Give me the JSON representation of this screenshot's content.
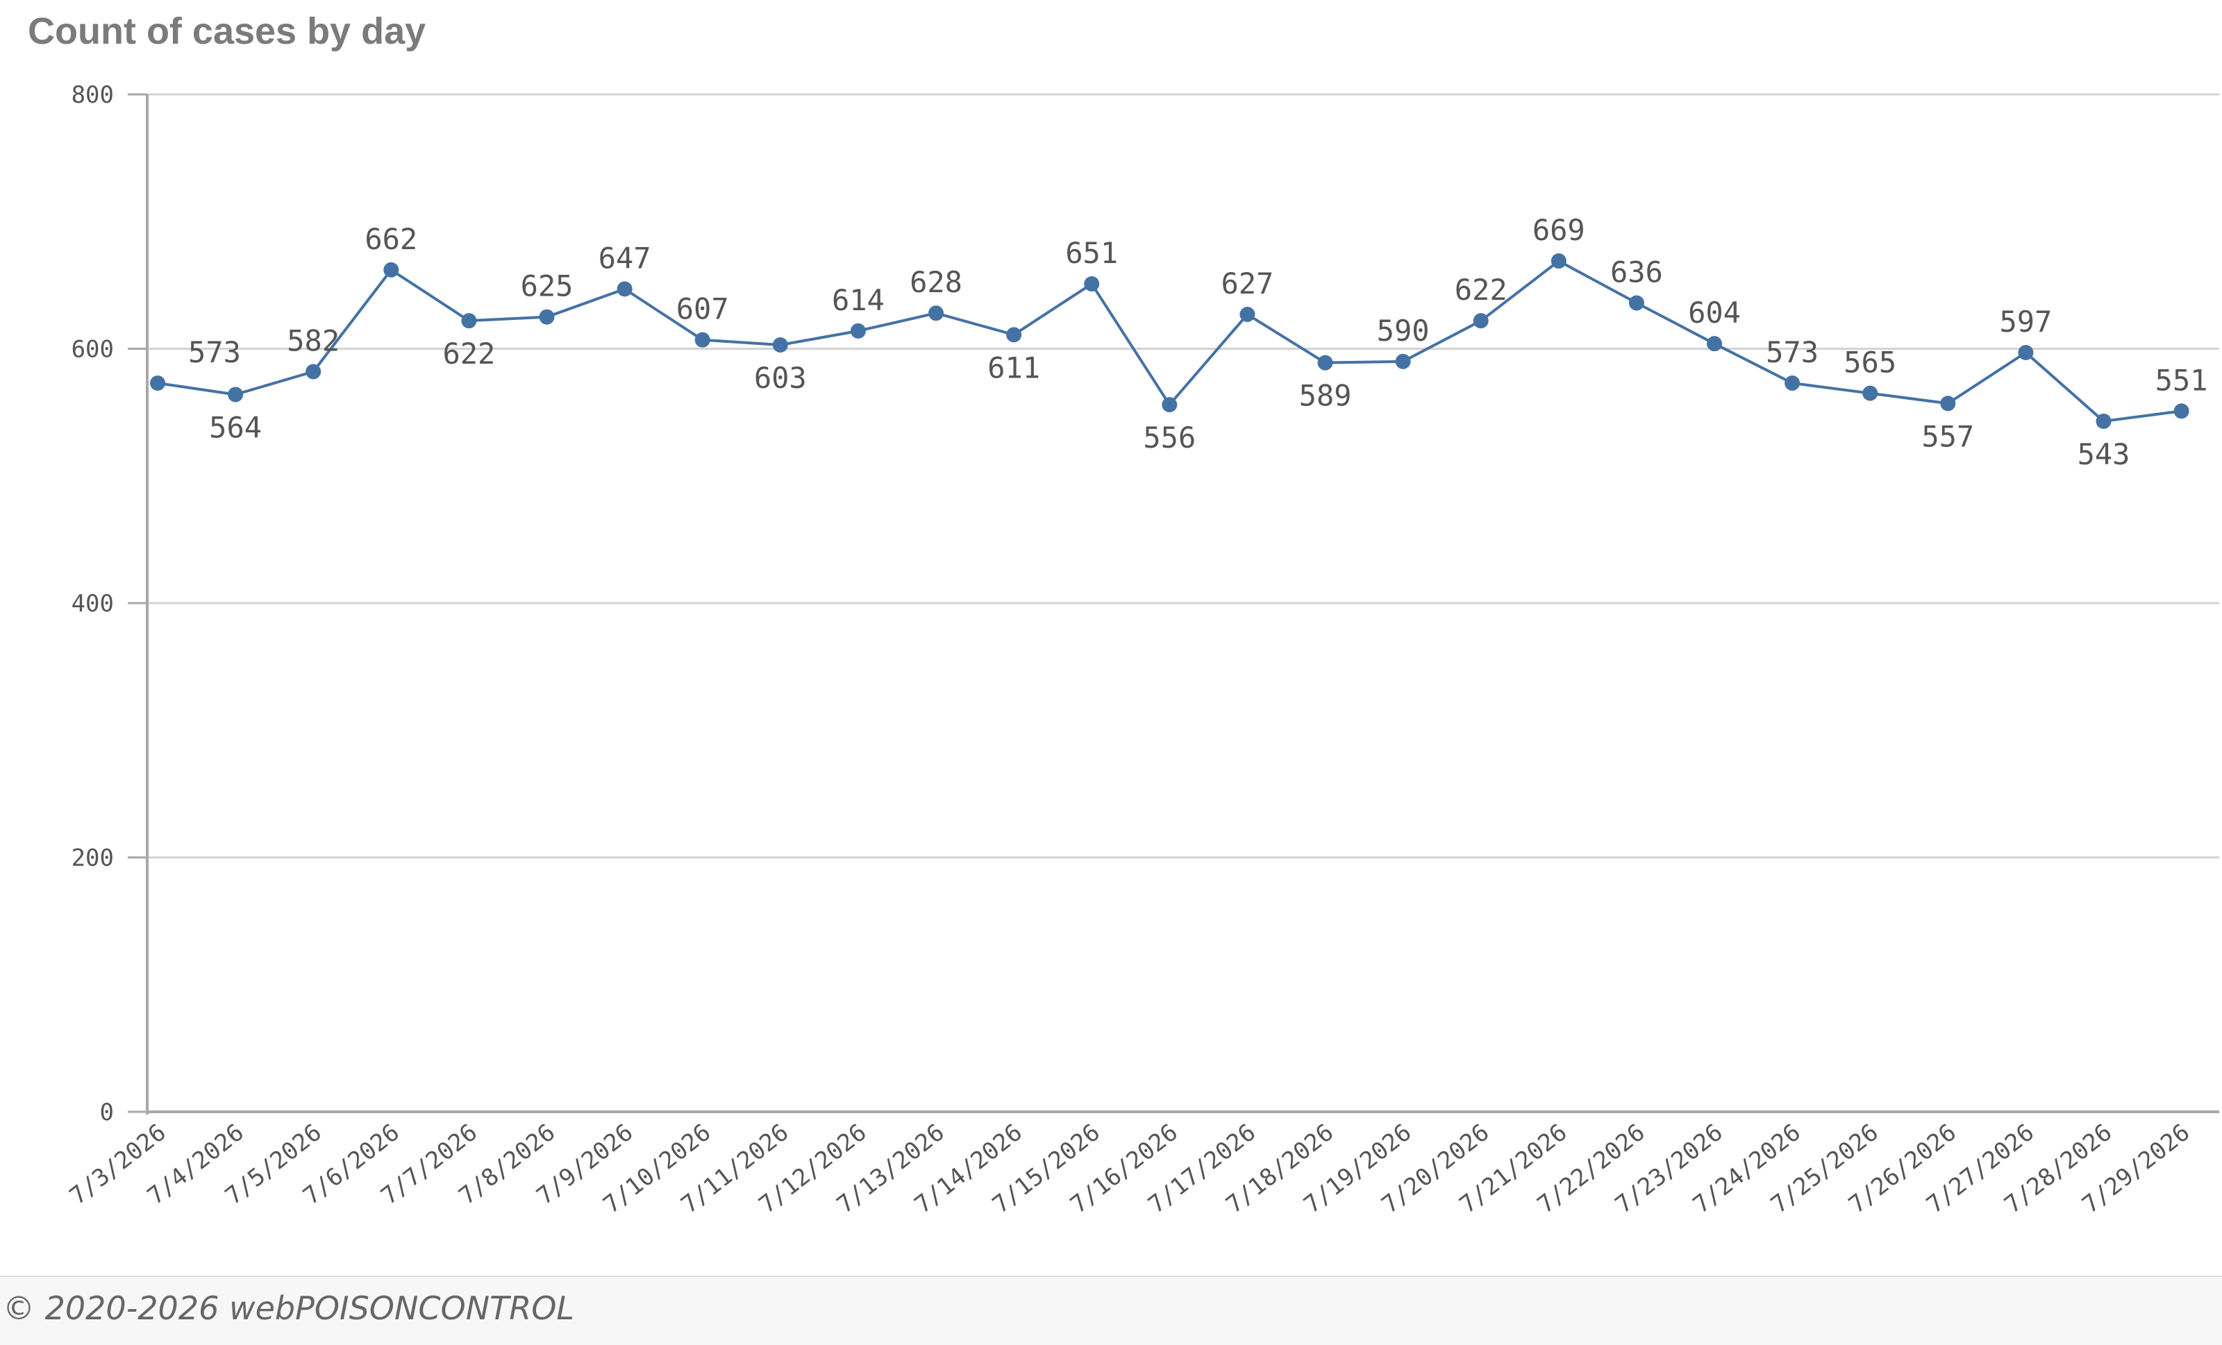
{
  "title": "Count of cases by day",
  "footer": "© 2020-2026 webPOISONCONTROL",
  "colors": {
    "series": "#4472a4",
    "grid": "#d3d3d3",
    "axis": "#a8a8a8",
    "text": "#555555"
  },
  "chart_data": {
    "type": "line",
    "title": "Count of cases by day",
    "xlabel": "",
    "ylabel": "",
    "ylim": [
      0,
      800
    ],
    "yticks": [
      0,
      200,
      400,
      600,
      800
    ],
    "grid": true,
    "categories": [
      "7/3/2026",
      "7/4/2026",
      "7/5/2026",
      "7/6/2026",
      "7/7/2026",
      "7/8/2026",
      "7/9/2026",
      "7/10/2026",
      "7/11/2026",
      "7/12/2026",
      "7/13/2026",
      "7/14/2026",
      "7/15/2026",
      "7/16/2026",
      "7/17/2026",
      "7/18/2026",
      "7/19/2026",
      "7/20/2026",
      "7/21/2026",
      "7/22/2026",
      "7/23/2026",
      "7/24/2026",
      "7/25/2026",
      "7/26/2026",
      "7/27/2026",
      "7/28/2026",
      "7/29/2026"
    ],
    "values": [
      573,
      564,
      582,
      662,
      622,
      625,
      647,
      607,
      603,
      614,
      628,
      611,
      651,
      556,
      627,
      589,
      590,
      622,
      669,
      636,
      604,
      573,
      565,
      557,
      597,
      543,
      551
    ]
  }
}
